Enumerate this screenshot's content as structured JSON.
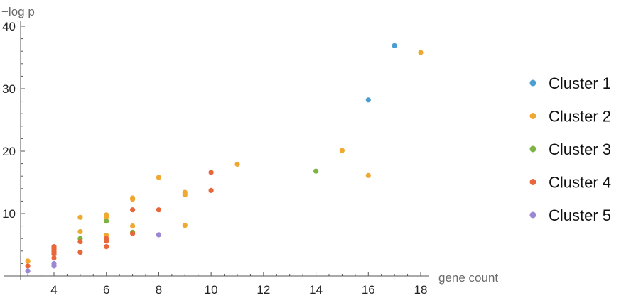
{
  "chart_data": {
    "type": "scatter",
    "title": "",
    "xlabel": "gene count",
    "ylabel": "−log p",
    "xlim": [
      2.7,
      18.2
    ],
    "ylim": [
      0,
      40.5
    ],
    "x_ticks": [
      4,
      6,
      8,
      10,
      12,
      14,
      16,
      18
    ],
    "y_ticks": [
      10,
      20,
      30,
      40
    ],
    "legend_position": "right",
    "grid": false,
    "series": [
      {
        "name": "Cluster 1",
        "color": "#4a9fd0",
        "points": [
          [
            17,
            36.9
          ],
          [
            16,
            28.2
          ]
        ]
      },
      {
        "name": "Cluster 2",
        "color": "#f0a830",
        "points": [
          [
            18,
            35.8
          ],
          [
            15,
            20.1
          ],
          [
            16,
            16.1
          ],
          [
            11,
            17.9
          ],
          [
            9,
            13.4
          ],
          [
            9,
            13.0
          ],
          [
            9,
            8.1
          ],
          [
            8,
            15.8
          ],
          [
            7,
            12.5
          ],
          [
            7,
            12.3
          ],
          [
            7,
            8.0
          ],
          [
            6,
            9.8
          ],
          [
            6,
            9.5
          ],
          [
            6,
            6.5
          ],
          [
            5,
            9.4
          ],
          [
            5,
            7.1
          ],
          [
            4,
            4.5
          ],
          [
            3,
            2.4
          ]
        ]
      },
      {
        "name": "Cluster 3",
        "color": "#7cb342",
        "points": [
          [
            14,
            16.8
          ],
          [
            6,
            8.8
          ],
          [
            7,
            7.0
          ],
          [
            5,
            6.0
          ]
        ]
      },
      {
        "name": "Cluster 4",
        "color": "#e8673a",
        "points": [
          [
            10,
            16.6
          ],
          [
            10,
            13.7
          ],
          [
            8,
            10.6
          ],
          [
            7,
            10.6
          ],
          [
            7,
            6.8
          ],
          [
            6,
            6.0
          ],
          [
            6,
            5.6
          ],
          [
            6,
            4.7
          ],
          [
            5,
            5.5
          ],
          [
            5,
            3.8
          ],
          [
            4,
            4.7
          ],
          [
            4,
            4.3
          ],
          [
            4,
            3.9
          ],
          [
            4,
            3.5
          ],
          [
            4,
            2.9
          ],
          [
            3,
            1.6
          ]
        ]
      },
      {
        "name": "Cluster 5",
        "color": "#9b87d4",
        "points": [
          [
            8,
            6.6
          ],
          [
            4,
            2.0
          ],
          [
            4,
            1.6
          ],
          [
            3,
            0.8
          ]
        ]
      }
    ]
  }
}
